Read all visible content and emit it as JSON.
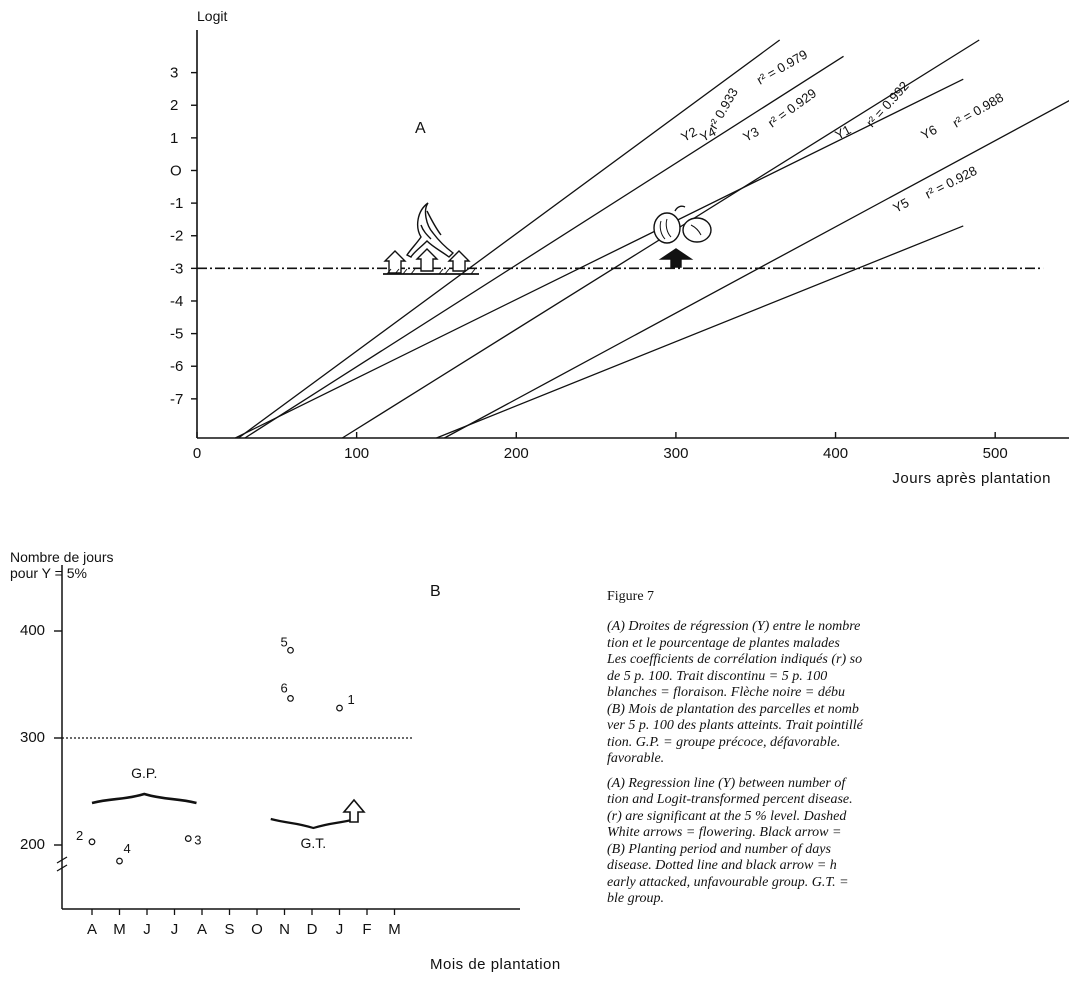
{
  "chart_data": [
    {
      "id": "A",
      "type": "line",
      "panel_label": "A",
      "ylabel": "Logit",
      "xlabel": "Jours après plantation",
      "x_ticks": [
        0,
        100,
        200,
        300,
        400,
        500
      ],
      "y_ticks": [
        {
          "value": 3,
          "label": "3"
        },
        {
          "value": 2,
          "label": "2"
        },
        {
          "value": 1,
          "label": "1"
        },
        {
          "value": 0,
          "label": "O"
        },
        {
          "value": -1,
          "label": "-1"
        },
        {
          "value": -2,
          "label": "-2"
        },
        {
          "value": -3,
          "label": "-3"
        },
        {
          "value": -4,
          "label": "-4"
        },
        {
          "value": -5,
          "label": "-5"
        },
        {
          "value": -6,
          "label": "-6"
        },
        {
          "value": -7,
          "label": "-7"
        }
      ],
      "xlim": [
        0,
        550
      ],
      "ylim": [
        -8.2,
        4.0
      ],
      "threshold": -3,
      "series": [
        {
          "name": "Y1",
          "r2": "r² = 0.992",
          "x": [
            91,
            490
          ],
          "y": [
            -8.2,
            4.0
          ]
        },
        {
          "name": "Y2",
          "r2": "r² 0.933",
          "x": [
            26,
            365
          ],
          "y": [
            -8.2,
            4.0
          ]
        },
        {
          "name": "Y3",
          "r2": "r² = 0.929",
          "x": [
            24,
            480
          ],
          "y": [
            -8.2,
            2.8
          ]
        },
        {
          "name": "Y4",
          "r2": "r² = 0.979",
          "x": [
            30,
            405
          ],
          "y": [
            -8.2,
            3.5
          ]
        },
        {
          "name": "Y5",
          "r2": "r² = 0.928",
          "x": [
            150,
            480
          ],
          "y": [
            -8.2,
            -1.7
          ]
        },
        {
          "name": "Y6",
          "r2": "r² = 0.988",
          "x": [
            155,
            560
          ],
          "y": [
            -8.2,
            2.5
          ]
        }
      ],
      "annotations": [
        "white arrows at -3 near 150 days (flowering)",
        "black arrow at -3 near 310 days (fruit)"
      ]
    },
    {
      "id": "B",
      "type": "scatter",
      "panel_label": "B",
      "ylabel_line1": "Nombre de jours",
      "ylabel_line2": "pour Y = 5%",
      "xlabel": "Mois de plantation",
      "categories": [
        "A",
        "M",
        "J",
        "J",
        "A",
        "S",
        "O",
        "N",
        "D",
        "J",
        "F",
        "M"
      ],
      "y_ticks": [
        200,
        300,
        400
      ],
      "threshold": 300,
      "points": [
        {
          "label": "1",
          "month_index": 9,
          "y": 328
        },
        {
          "label": "2",
          "month_index": 0,
          "y": 203
        },
        {
          "label": "3",
          "month_index": 3.5,
          "y": 206
        },
        {
          "label": "4",
          "month_index": 1,
          "y": 185
        },
        {
          "label": "5",
          "month_index": 7,
          "y": 382
        },
        {
          "label": "6",
          "month_index": 7,
          "y": 337
        }
      ],
      "groups": [
        {
          "label": "G.P.",
          "from_index": 0,
          "to_index": 3.8
        },
        {
          "label": "G.T.",
          "from_index": 6.5,
          "to_index": 9.6
        }
      ]
    }
  ],
  "caption": {
    "figure_title": "Figure 7",
    "french_lines": [
      "(A) Droites de régression (Y) entre le nombre",
      "tion et le pourcentage de plantes malades",
      "Les coefficients de corrélation indiqués (r) so",
      "de 5 p. 100. Trait discontinu = 5 p. 100",
      "blanches = floraison. Flèche noire = débu",
      "(B) Mois de plantation des parcelles et nomb",
      "ver 5 p. 100 des plants atteints. Trait pointillé",
      "tion. G.P. = groupe précoce, défavorable.",
      "favorable."
    ],
    "english_lines": [
      "(A) Regression line (Y) between number of",
      "tion and Logit-transformed percent disease.",
      "(r) are significant at the 5 % level. Dashed",
      "White arrows = flowering. Black arrow =",
      "(B) Planting period and number of days",
      "disease. Dotted line and black arrow = h",
      "early attacked, unfavourable group. G.T. =",
      "ble group."
    ]
  }
}
